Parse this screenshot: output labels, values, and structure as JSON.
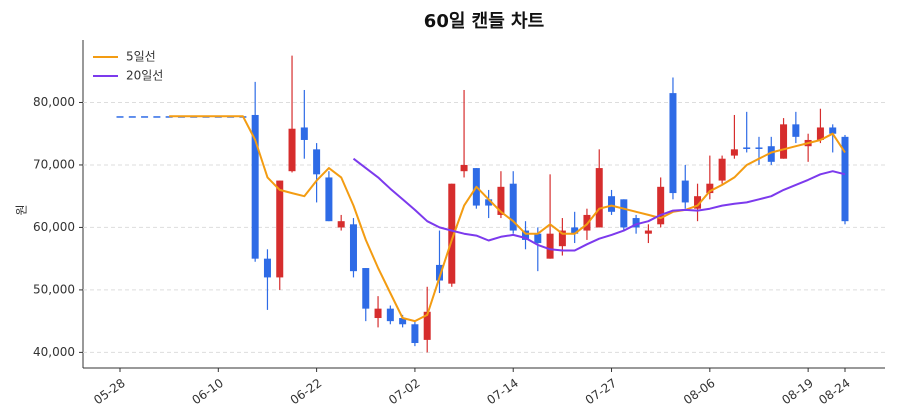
{
  "chart_data": {
    "type": "candlestick",
    "title": "60일 캔들 차트",
    "y_label": "원",
    "categories": [
      "05-28",
      null,
      null,
      null,
      null,
      null,
      null,
      null,
      "06-10",
      null,
      null,
      null,
      null,
      null,
      null,
      null,
      "06-22",
      null,
      null,
      null,
      null,
      null,
      null,
      null,
      "07-02",
      null,
      null,
      null,
      null,
      null,
      null,
      null,
      "07-14",
      null,
      null,
      null,
      null,
      null,
      null,
      null,
      "07-27",
      null,
      null,
      null,
      null,
      null,
      null,
      null,
      "08-06",
      null,
      null,
      null,
      null,
      null,
      null,
      null,
      "08-19",
      null,
      null,
      "08-24"
    ],
    "ylim": [
      37500,
      90000
    ],
    "yticks": [
      {
        "value": 40000,
        "label": "40,000"
      },
      {
        "value": 50000,
        "label": "50,000"
      },
      {
        "value": 60000,
        "label": "60,000"
      },
      {
        "value": 70000,
        "label": "70,000"
      },
      {
        "value": 80000,
        "label": "80,000"
      }
    ],
    "grid": true,
    "up_color": "#d62d2d",
    "down_color": "#2e6be6",
    "open": [
      77800,
      77800,
      77800,
      77800,
      77800,
      77800,
      77800,
      77800,
      77800,
      77800,
      77800,
      78000,
      55000,
      52000,
      69000,
      76000,
      72500,
      68000,
      60000,
      60500,
      53500,
      45500,
      47000,
      45500,
      44500,
      42000,
      54000,
      51000,
      69000,
      69500,
      64500,
      62000,
      67000,
      59500,
      59000,
      55000,
      57000,
      60000,
      59500,
      60000,
      65000,
      64500,
      61500,
      59000,
      60500,
      81500,
      67500,
      63000,
      65500,
      67500,
      71500,
      72800,
      72800,
      73000,
      71000,
      76500,
      73000,
      74000,
      76000,
      74500
    ],
    "high": [
      77800,
      77800,
      77800,
      77800,
      77800,
      77800,
      77800,
      77800,
      77800,
      77800,
      77800,
      83300,
      56500,
      67500,
      87500,
      82000,
      73500,
      69000,
      62000,
      61500,
      53500,
      49000,
      47500,
      46000,
      45000,
      50500,
      59500,
      67000,
      82000,
      69500,
      66000,
      69000,
      69000,
      61000,
      60000,
      68500,
      61500,
      62500,
      63000,
      72500,
      66000,
      64500,
      62000,
      60500,
      68000,
      84000,
      70000,
      67000,
      71500,
      71500,
      78000,
      78500,
      74500,
      74500,
      77500,
      78500,
      75000,
      79000,
      76500,
      74800
    ],
    "low": [
      77800,
      77800,
      77800,
      77800,
      77800,
      77800,
      77800,
      77800,
      77800,
      77800,
      77800,
      54500,
      46800,
      50000,
      68800,
      71000,
      64000,
      61000,
      59500,
      52000,
      45000,
      44000,
      44500,
      44000,
      41000,
      40000,
      49500,
      50500,
      68000,
      63000,
      61500,
      61500,
      59000,
      56500,
      53000,
      55000,
      55500,
      57500,
      58000,
      60000,
      62000,
      59500,
      59000,
      57500,
      60000,
      64500,
      63000,
      61000,
      64500,
      67000,
      71000,
      72000,
      70000,
      70000,
      71000,
      73500,
      70500,
      73500,
      72000,
      60500
    ],
    "close": [
      77800,
      77800,
      77800,
      77800,
      77800,
      77800,
      77800,
      77800,
      77800,
      77800,
      77800,
      55000,
      52000,
      67500,
      75800,
      74000,
      68500,
      61000,
      61000,
      53000,
      47000,
      47000,
      45000,
      44500,
      41500,
      46500,
      51500,
      67000,
      70000,
      63500,
      63500,
      66500,
      59500,
      58000,
      57500,
      59000,
      59500,
      59000,
      62000,
      69500,
      62500,
      60000,
      60000,
      59500,
      66500,
      65500,
      64000,
      65000,
      67000,
      71000,
      72500,
      72600,
      72600,
      70500,
      76500,
      74500,
      74000,
      76000,
      75000,
      61000
    ],
    "series": [
      {
        "name": "5일선",
        "color": "#f39c12",
        "values": [
          null,
          null,
          null,
          null,
          77800,
          77800,
          77800,
          77800,
          77800,
          77800,
          77800,
          74000,
          68000,
          66000,
          65500,
          65000,
          67500,
          69500,
          68000,
          63500,
          58000,
          53500,
          49500,
          45500,
          45000,
          46000,
          52000,
          58000,
          63500,
          66500,
          64500,
          62500,
          61000,
          59000,
          59000,
          60500,
          59000,
          59000,
          60500,
          63000,
          63500,
          63000,
          62500,
          62000,
          61500,
          62500,
          62800,
          63500,
          65800,
          66800,
          68000,
          70000,
          71000,
          72000,
          72500,
          73000,
          73500,
          74000,
          75000,
          72000
        ]
      },
      {
        "name": "20일선",
        "color": "#7c3aed",
        "values": [
          null,
          null,
          null,
          null,
          null,
          null,
          null,
          null,
          null,
          null,
          null,
          null,
          null,
          null,
          null,
          null,
          null,
          null,
          null,
          71000,
          69500,
          68000,
          66200,
          64500,
          62800,
          61000,
          60000,
          59500,
          59000,
          58700,
          57900,
          58500,
          58800,
          58300,
          57200,
          56500,
          56300,
          56300,
          57300,
          58200,
          58800,
          59500,
          60500,
          61000,
          62000,
          62700,
          62800,
          62700,
          63000,
          63500,
          63800,
          64000,
          64500,
          65000,
          66000,
          66800,
          67600,
          68500,
          69000,
          68500
        ]
      }
    ]
  }
}
